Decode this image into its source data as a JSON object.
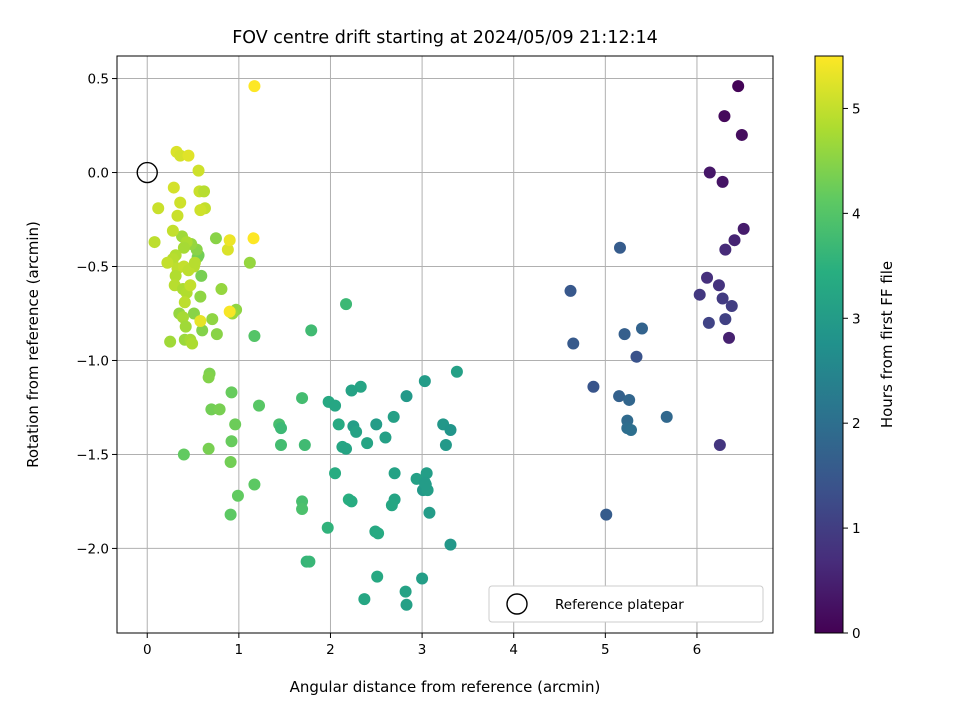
{
  "chart_data": {
    "type": "scatter",
    "title": "FOV centre drift starting at 2024/05/09 21:12:14",
    "xlabel": "Angular distance from reference (arcmin)",
    "ylabel": "Rotation from reference (arcmin)",
    "xlim": [
      -0.33,
      6.83
    ],
    "ylim": [
      -2.45,
      0.62
    ],
    "xticks": [
      0,
      1,
      2,
      3,
      4,
      5,
      6
    ],
    "xtick_labels": [
      "0",
      "1",
      "2",
      "3",
      "4",
      "5",
      "6"
    ],
    "yticks": [
      0.5,
      0.0,
      -0.5,
      -1.0,
      -1.5,
      -2.0
    ],
    "ytick_labels": [
      "0.5",
      "0.0",
      "−0.5",
      "−1.0",
      "−1.5",
      "−2.0"
    ],
    "grid": true,
    "colormap": "viridis",
    "colorbar": {
      "label": "Hours from first FF file",
      "range": [
        0,
        5.5
      ],
      "ticks": [
        0,
        1,
        2,
        3,
        4,
        5
      ],
      "tick_labels": [
        "0",
        "1",
        "2",
        "3",
        "4",
        "5"
      ]
    },
    "legend": {
      "position": "lower-right",
      "entries": [
        "Reference platepar"
      ]
    },
    "reference_point": {
      "x": 0,
      "y": 0
    },
    "series": [
      {
        "points": [
          [
            6.45,
            0.46,
            0.05
          ],
          [
            6.3,
            0.3,
            0.12
          ],
          [
            6.49,
            0.2,
            0.18
          ],
          [
            6.14,
            0.0,
            0.35
          ],
          [
            6.28,
            -0.05,
            0.3
          ],
          [
            6.51,
            -0.3,
            0.42
          ],
          [
            6.41,
            -0.36,
            0.55
          ],
          [
            6.31,
            -0.41,
            0.65
          ],
          [
            6.11,
            -0.56,
            0.75
          ],
          [
            6.24,
            -0.6,
            0.8
          ],
          [
            6.03,
            -0.65,
            0.9
          ],
          [
            6.28,
            -0.67,
            0.95
          ],
          [
            6.38,
            -0.71,
            1.0
          ],
          [
            6.31,
            -0.78,
            1.05
          ],
          [
            6.13,
            -0.8,
            1.1
          ],
          [
            6.35,
            -0.88,
            0.5
          ],
          [
            6.25,
            -1.45,
            0.85
          ],
          [
            5.16,
            -0.4,
            1.6
          ],
          [
            4.62,
            -0.63,
            1.5
          ],
          [
            5.21,
            -0.86,
            1.65
          ],
          [
            5.4,
            -0.83,
            1.75
          ],
          [
            4.65,
            -0.91,
            1.55
          ],
          [
            5.34,
            -0.98,
            1.4
          ],
          [
            4.87,
            -1.14,
            1.45
          ],
          [
            5.15,
            -1.19,
            1.7
          ],
          [
            5.26,
            -1.21,
            1.8
          ],
          [
            5.67,
            -1.3,
            1.85
          ],
          [
            5.24,
            -1.32,
            1.9
          ],
          [
            5.24,
            -1.36,
            1.95
          ],
          [
            5.28,
            -1.37,
            2.0
          ],
          [
            5.01,
            -1.82,
            1.6
          ],
          [
            3.38,
            -1.06,
            3.1
          ],
          [
            3.03,
            -1.11,
            3.0
          ],
          [
            2.33,
            -1.14,
            3.2
          ],
          [
            2.23,
            -1.16,
            3.15
          ],
          [
            2.83,
            -1.19,
            2.95
          ],
          [
            1.98,
            -1.22,
            3.3
          ],
          [
            2.05,
            -1.24,
            3.25
          ],
          [
            2.69,
            -1.3,
            3.1
          ],
          [
            2.09,
            -1.34,
            3.35
          ],
          [
            2.25,
            -1.35,
            3.05
          ],
          [
            2.5,
            -1.34,
            3.0
          ],
          [
            3.23,
            -1.34,
            2.9
          ],
          [
            3.31,
            -1.37,
            2.85
          ],
          [
            2.28,
            -1.38,
            3.15
          ],
          [
            2.4,
            -1.44,
            3.2
          ],
          [
            2.6,
            -1.41,
            3.1
          ],
          [
            3.26,
            -1.45,
            2.95
          ],
          [
            2.13,
            -1.46,
            3.25
          ],
          [
            2.17,
            -1.47,
            3.2
          ],
          [
            3.05,
            -1.6,
            3.05
          ],
          [
            2.05,
            -1.6,
            3.4
          ],
          [
            2.7,
            -1.6,
            3.15
          ],
          [
            2.94,
            -1.63,
            3.1
          ],
          [
            3.03,
            -1.65,
            3.0
          ],
          [
            3.01,
            -1.69,
            2.95
          ],
          [
            3.06,
            -1.69,
            3.05
          ],
          [
            3.04,
            -1.66,
            3.0
          ],
          [
            2.2,
            -1.74,
            3.45
          ],
          [
            2.23,
            -1.75,
            3.4
          ],
          [
            2.7,
            -1.74,
            3.2
          ],
          [
            2.67,
            -1.77,
            3.25
          ],
          [
            3.08,
            -1.81,
            3.0
          ],
          [
            2.49,
            -1.91,
            3.3
          ],
          [
            2.52,
            -1.92,
            3.35
          ],
          [
            3.31,
            -1.98,
            2.9
          ],
          [
            2.51,
            -2.15,
            3.3
          ],
          [
            3.0,
            -2.16,
            3.05
          ],
          [
            2.82,
            -2.23,
            3.15
          ],
          [
            2.83,
            -2.3,
            3.1
          ],
          [
            2.37,
            -2.27,
            3.25
          ],
          [
            1.74,
            -2.07,
            3.6
          ],
          [
            1.77,
            -2.07,
            3.65
          ],
          [
            1.97,
            -1.89,
            3.55
          ],
          [
            2.17,
            -0.7,
            3.7
          ],
          [
            1.79,
            -0.84,
            3.75
          ],
          [
            1.69,
            -1.2,
            3.8
          ],
          [
            1.44,
            -1.34,
            3.85
          ],
          [
            1.46,
            -1.36,
            3.7
          ],
          [
            1.46,
            -1.45,
            3.8
          ],
          [
            1.72,
            -1.45,
            3.75
          ],
          [
            1.69,
            -1.75,
            3.85
          ],
          [
            1.69,
            -1.79,
            3.9
          ],
          [
            1.17,
            -0.87,
            4.0
          ],
          [
            1.22,
            -1.24,
            4.05
          ],
          [
            1.17,
            -1.66,
            4.1
          ],
          [
            0.99,
            -1.72,
            4.15
          ],
          [
            0.91,
            -1.82,
            4.1
          ],
          [
            0.92,
            -1.17,
            4.2
          ],
          [
            0.96,
            -1.34,
            4.25
          ],
          [
            0.92,
            -1.43,
            4.2
          ],
          [
            0.91,
            -1.54,
            4.3
          ],
          [
            0.67,
            -1.47,
            4.35
          ],
          [
            0.4,
            -1.5,
            4.15
          ],
          [
            0.68,
            -1.07,
            4.4
          ],
          [
            0.67,
            -1.09,
            4.45
          ],
          [
            0.7,
            -1.26,
            4.3
          ],
          [
            0.79,
            -1.26,
            4.35
          ],
          [
            1.12,
            -0.48,
            4.6
          ],
          [
            0.97,
            -0.73,
            4.55
          ],
          [
            0.93,
            -0.75,
            4.65
          ],
          [
            0.81,
            -0.62,
            4.6
          ],
          [
            0.71,
            -0.78,
            4.55
          ],
          [
            0.76,
            -0.86,
            4.5
          ],
          [
            0.6,
            -0.84,
            4.45
          ],
          [
            0.51,
            -0.75,
            4.5
          ],
          [
            0.35,
            -0.75,
            4.6
          ],
          [
            0.25,
            -0.9,
            4.7
          ],
          [
            0.39,
            -0.77,
            4.75
          ],
          [
            0.42,
            -0.82,
            4.7
          ],
          [
            0.41,
            -0.89,
            4.65
          ],
          [
            0.47,
            -0.89,
            4.75
          ],
          [
            0.49,
            -0.91,
            4.8
          ],
          [
            0.51,
            -0.5,
            4.9
          ],
          [
            0.55,
            -0.45,
            4.4
          ],
          [
            0.56,
            -0.44,
            4.3
          ],
          [
            0.59,
            -0.55,
            4.35
          ],
          [
            0.54,
            -0.41,
            4.5
          ],
          [
            0.48,
            -0.38,
            4.6
          ],
          [
            0.38,
            -0.34,
            4.7
          ],
          [
            0.43,
            -0.37,
            4.8
          ],
          [
            0.4,
            -0.4,
            4.75
          ],
          [
            0.31,
            -0.44,
            4.85
          ],
          [
            0.28,
            -0.46,
            4.9
          ],
          [
            0.33,
            -0.51,
            4.95
          ],
          [
            0.31,
            -0.55,
            4.85
          ],
          [
            0.3,
            -0.6,
            4.9
          ],
          [
            0.39,
            -0.62,
            4.8
          ],
          [
            0.43,
            -0.64,
            4.85
          ],
          [
            0.41,
            -0.69,
            4.95
          ],
          [
            0.47,
            -0.6,
            5.0
          ],
          [
            0.58,
            -0.66,
            4.55
          ],
          [
            0.4,
            -0.5,
            5.0
          ],
          [
            0.45,
            -0.52,
            4.95
          ],
          [
            0.52,
            -0.48,
            4.9
          ],
          [
            0.22,
            -0.48,
            5.0
          ],
          [
            0.08,
            -0.37,
            4.95
          ],
          [
            0.12,
            -0.19,
            5.05
          ],
          [
            0.28,
            -0.31,
            5.0
          ],
          [
            0.33,
            -0.23,
            5.05
          ],
          [
            0.36,
            -0.16,
            5.1
          ],
          [
            0.29,
            -0.08,
            5.15
          ],
          [
            0.32,
            0.11,
            5.2
          ],
          [
            0.36,
            0.09,
            5.15
          ],
          [
            0.45,
            0.09,
            5.25
          ],
          [
            0.56,
            0.01,
            5.1
          ],
          [
            0.57,
            -0.1,
            5.05
          ],
          [
            0.62,
            -0.1,
            4.9
          ],
          [
            0.63,
            -0.19,
            5.0
          ],
          [
            0.58,
            -0.2,
            5.1
          ],
          [
            0.75,
            -0.35,
            4.5
          ],
          [
            0.88,
            -0.41,
            5.2
          ],
          [
            0.9,
            -0.36,
            5.35
          ],
          [
            0.58,
            -0.79,
            5.3
          ],
          [
            0.9,
            -0.74,
            5.45
          ],
          [
            1.16,
            -0.35,
            5.5
          ],
          [
            1.17,
            0.46,
            5.5
          ]
        ]
      }
    ]
  }
}
